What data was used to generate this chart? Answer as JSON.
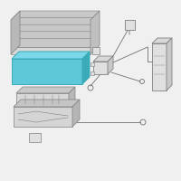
{
  "bg_color": "#f0f0f0",
  "line_color": "#606060",
  "highlight_color": "#5ec8d8",
  "highlight_edge": "#3aabb8",
  "highlight_top": "#7ad8e8",
  "highlight_right": "#3aabb8",
  "part_color": "#e0e0e0",
  "part_edge": "#808080",
  "part_dark": "#c0c0c0",
  "wire_color": "#707070",
  "fig_bg": "#f0f0f0"
}
